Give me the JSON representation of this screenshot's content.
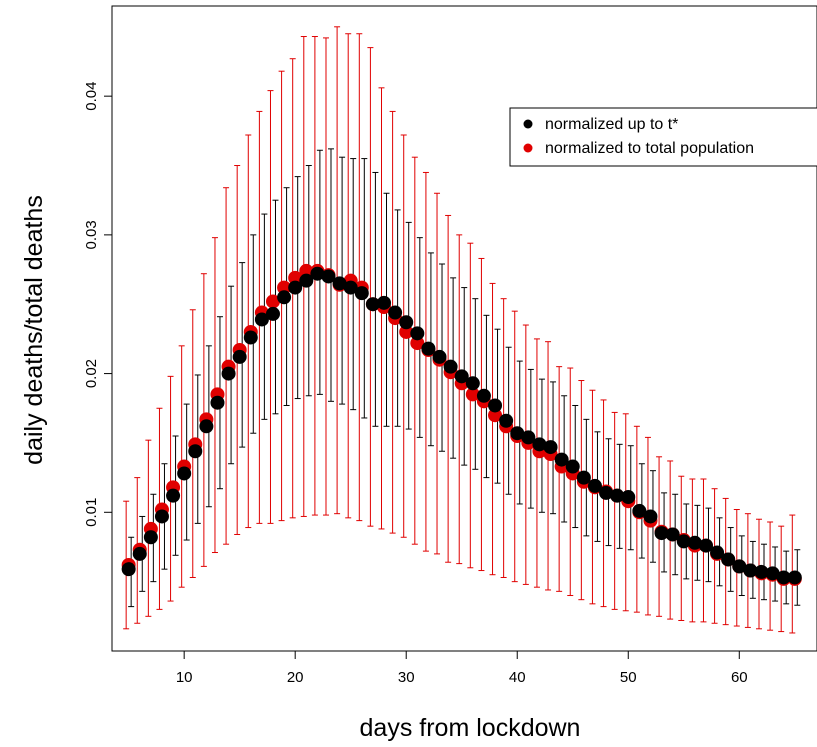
{
  "chart_data": {
    "type": "scatter",
    "xlabel": "days from lockdown",
    "ylabel": "daily deaths/total deaths",
    "xlim": [
      3.5,
      67
    ],
    "ylim": [
      0.0,
      0.0465
    ],
    "x_ticks": [
      10,
      20,
      30,
      40,
      50,
      60
    ],
    "y_ticks": [
      0.01,
      0.02,
      0.03,
      0.04
    ],
    "x_tick_labels": [
      "10",
      "20",
      "30",
      "40",
      "50",
      "60"
    ],
    "y_tick_labels": [
      "0.01",
      "0.02",
      "0.03",
      "0.04"
    ],
    "grid": false,
    "legend_position": "top-right",
    "x": [
      5,
      6,
      7,
      8,
      9,
      10,
      11,
      12,
      13,
      14,
      15,
      16,
      17,
      18,
      19,
      20,
      21,
      22,
      23,
      24,
      25,
      26,
      27,
      28,
      29,
      30,
      31,
      32,
      33,
      34,
      35,
      36,
      37,
      38,
      39,
      40,
      41,
      42,
      43,
      44,
      45,
      46,
      47,
      48,
      49,
      50,
      51,
      52,
      53,
      54,
      55,
      56,
      57,
      58,
      59,
      60,
      61,
      62,
      63,
      64,
      65
    ],
    "series": [
      {
        "name": "normalized to total population",
        "color": "#e00000",
        "values": [
          0.0062,
          0.0073,
          0.0088,
          0.0102,
          0.0118,
          0.0133,
          0.0149,
          0.0167,
          0.0185,
          0.0205,
          0.0217,
          0.023,
          0.0244,
          0.0252,
          0.0262,
          0.0269,
          0.0274,
          0.0274,
          0.0271,
          0.0264,
          0.0267,
          0.0262,
          0.025,
          0.0248,
          0.024,
          0.023,
          0.0222,
          0.0217,
          0.021,
          0.0201,
          0.0193,
          0.0185,
          0.018,
          0.017,
          0.0162,
          0.0155,
          0.015,
          0.0144,
          0.0142,
          0.0133,
          0.0128,
          0.0122,
          0.0118,
          0.0115,
          0.0112,
          0.0108,
          0.01,
          0.0094,
          0.0086,
          0.0084,
          0.008,
          0.0076,
          0.0076,
          0.007,
          0.0066,
          0.0061,
          0.0058,
          0.0056,
          0.0055,
          0.0052,
          0.0052
        ],
        "upper": [
          0.0108,
          0.0125,
          0.0152,
          0.0175,
          0.0198,
          0.022,
          0.0246,
          0.0272,
          0.0298,
          0.0334,
          0.035,
          0.0372,
          0.0389,
          0.0404,
          0.0418,
          0.0427,
          0.0443,
          0.0443,
          0.0442,
          0.045,
          0.0445,
          0.0445,
          0.0435,
          0.0406,
          0.0389,
          0.0372,
          0.0356,
          0.0345,
          0.033,
          0.0314,
          0.03,
          0.0294,
          0.0283,
          0.0265,
          0.0254,
          0.0245,
          0.0235,
          0.0225,
          0.0223,
          0.0205,
          0.0204,
          0.0195,
          0.0188,
          0.0181,
          0.0172,
          0.0171,
          0.0162,
          0.0154,
          0.014,
          0.0137,
          0.0126,
          0.0124,
          0.0124,
          0.0117,
          0.011,
          0.0102,
          0.0099,
          0.0095,
          0.0093,
          0.009,
          0.0098
        ],
        "lower": [
          0.0016,
          0.002,
          0.0025,
          0.003,
          0.0036,
          0.0046,
          0.0053,
          0.0061,
          0.0071,
          0.0077,
          0.0084,
          0.0089,
          0.0092,
          0.0092,
          0.0094,
          0.0096,
          0.0097,
          0.0098,
          0.0098,
          0.0099,
          0.0096,
          0.0094,
          0.009,
          0.0088,
          0.0085,
          0.0082,
          0.0077,
          0.0072,
          0.007,
          0.0064,
          0.0063,
          0.006,
          0.0058,
          0.0055,
          0.0053,
          0.005,
          0.0048,
          0.0046,
          0.0044,
          0.0043,
          0.004,
          0.0037,
          0.0034,
          0.0032,
          0.003,
          0.0029,
          0.0028,
          0.0026,
          0.0025,
          0.0023,
          0.0022,
          0.0021,
          0.0021,
          0.002,
          0.0019,
          0.0018,
          0.0017,
          0.0016,
          0.0015,
          0.0014,
          0.0013
        ]
      },
      {
        "name": "normalized up to t*",
        "color": "#000000",
        "values": [
          0.0059,
          0.007,
          0.0082,
          0.0097,
          0.0112,
          0.0128,
          0.0144,
          0.0162,
          0.0179,
          0.02,
          0.0212,
          0.0226,
          0.0239,
          0.0243,
          0.0255,
          0.0262,
          0.0267,
          0.0272,
          0.027,
          0.0265,
          0.0262,
          0.0258,
          0.025,
          0.0251,
          0.0244,
          0.0237,
          0.0229,
          0.0218,
          0.0212,
          0.0205,
          0.0198,
          0.0193,
          0.0184,
          0.0177,
          0.0166,
          0.0157,
          0.0154,
          0.0149,
          0.0147,
          0.0138,
          0.0133,
          0.0125,
          0.0119,
          0.0114,
          0.0112,
          0.0111,
          0.0101,
          0.0097,
          0.0085,
          0.0084,
          0.0079,
          0.0078,
          0.0076,
          0.0071,
          0.0066,
          0.0061,
          0.0058,
          0.0057,
          0.0056,
          0.0053,
          0.0053
        ],
        "upper": [
          0.0082,
          0.0097,
          0.0113,
          0.0135,
          0.0155,
          0.0178,
          0.0199,
          0.022,
          0.0241,
          0.0263,
          0.028,
          0.03,
          0.0315,
          0.0325,
          0.0334,
          0.0342,
          0.035,
          0.0361,
          0.0362,
          0.0356,
          0.0355,
          0.0355,
          0.0345,
          0.033,
          0.0318,
          0.0309,
          0.0298,
          0.0287,
          0.0279,
          0.0269,
          0.0262,
          0.0254,
          0.0242,
          0.0232,
          0.0219,
          0.0209,
          0.0203,
          0.0196,
          0.0194,
          0.0184,
          0.0177,
          0.0167,
          0.0158,
          0.0153,
          0.0149,
          0.0148,
          0.0135,
          0.013,
          0.0114,
          0.0113,
          0.0106,
          0.0105,
          0.0103,
          0.0096,
          0.0089,
          0.0083,
          0.0079,
          0.0077,
          0.0075,
          0.0072,
          0.0073
        ],
        "lower": [
          0.0032,
          0.0043,
          0.005,
          0.0059,
          0.0069,
          0.008,
          0.0092,
          0.0104,
          0.0117,
          0.0135,
          0.0147,
          0.0157,
          0.0167,
          0.0171,
          0.0177,
          0.0182,
          0.0184,
          0.0185,
          0.018,
          0.0178,
          0.0174,
          0.0168,
          0.0162,
          0.0162,
          0.0162,
          0.016,
          0.0154,
          0.0148,
          0.0144,
          0.0139,
          0.0134,
          0.0131,
          0.0125,
          0.0121,
          0.0113,
          0.0106,
          0.0103,
          0.01,
          0.0099,
          0.0093,
          0.0089,
          0.0083,
          0.0079,
          0.0076,
          0.0074,
          0.0073,
          0.0067,
          0.0064,
          0.0057,
          0.0055,
          0.0052,
          0.0051,
          0.005,
          0.0047,
          0.0043,
          0.004,
          0.0038,
          0.0037,
          0.0036,
          0.0034,
          0.0033
        ]
      }
    ]
  }
}
